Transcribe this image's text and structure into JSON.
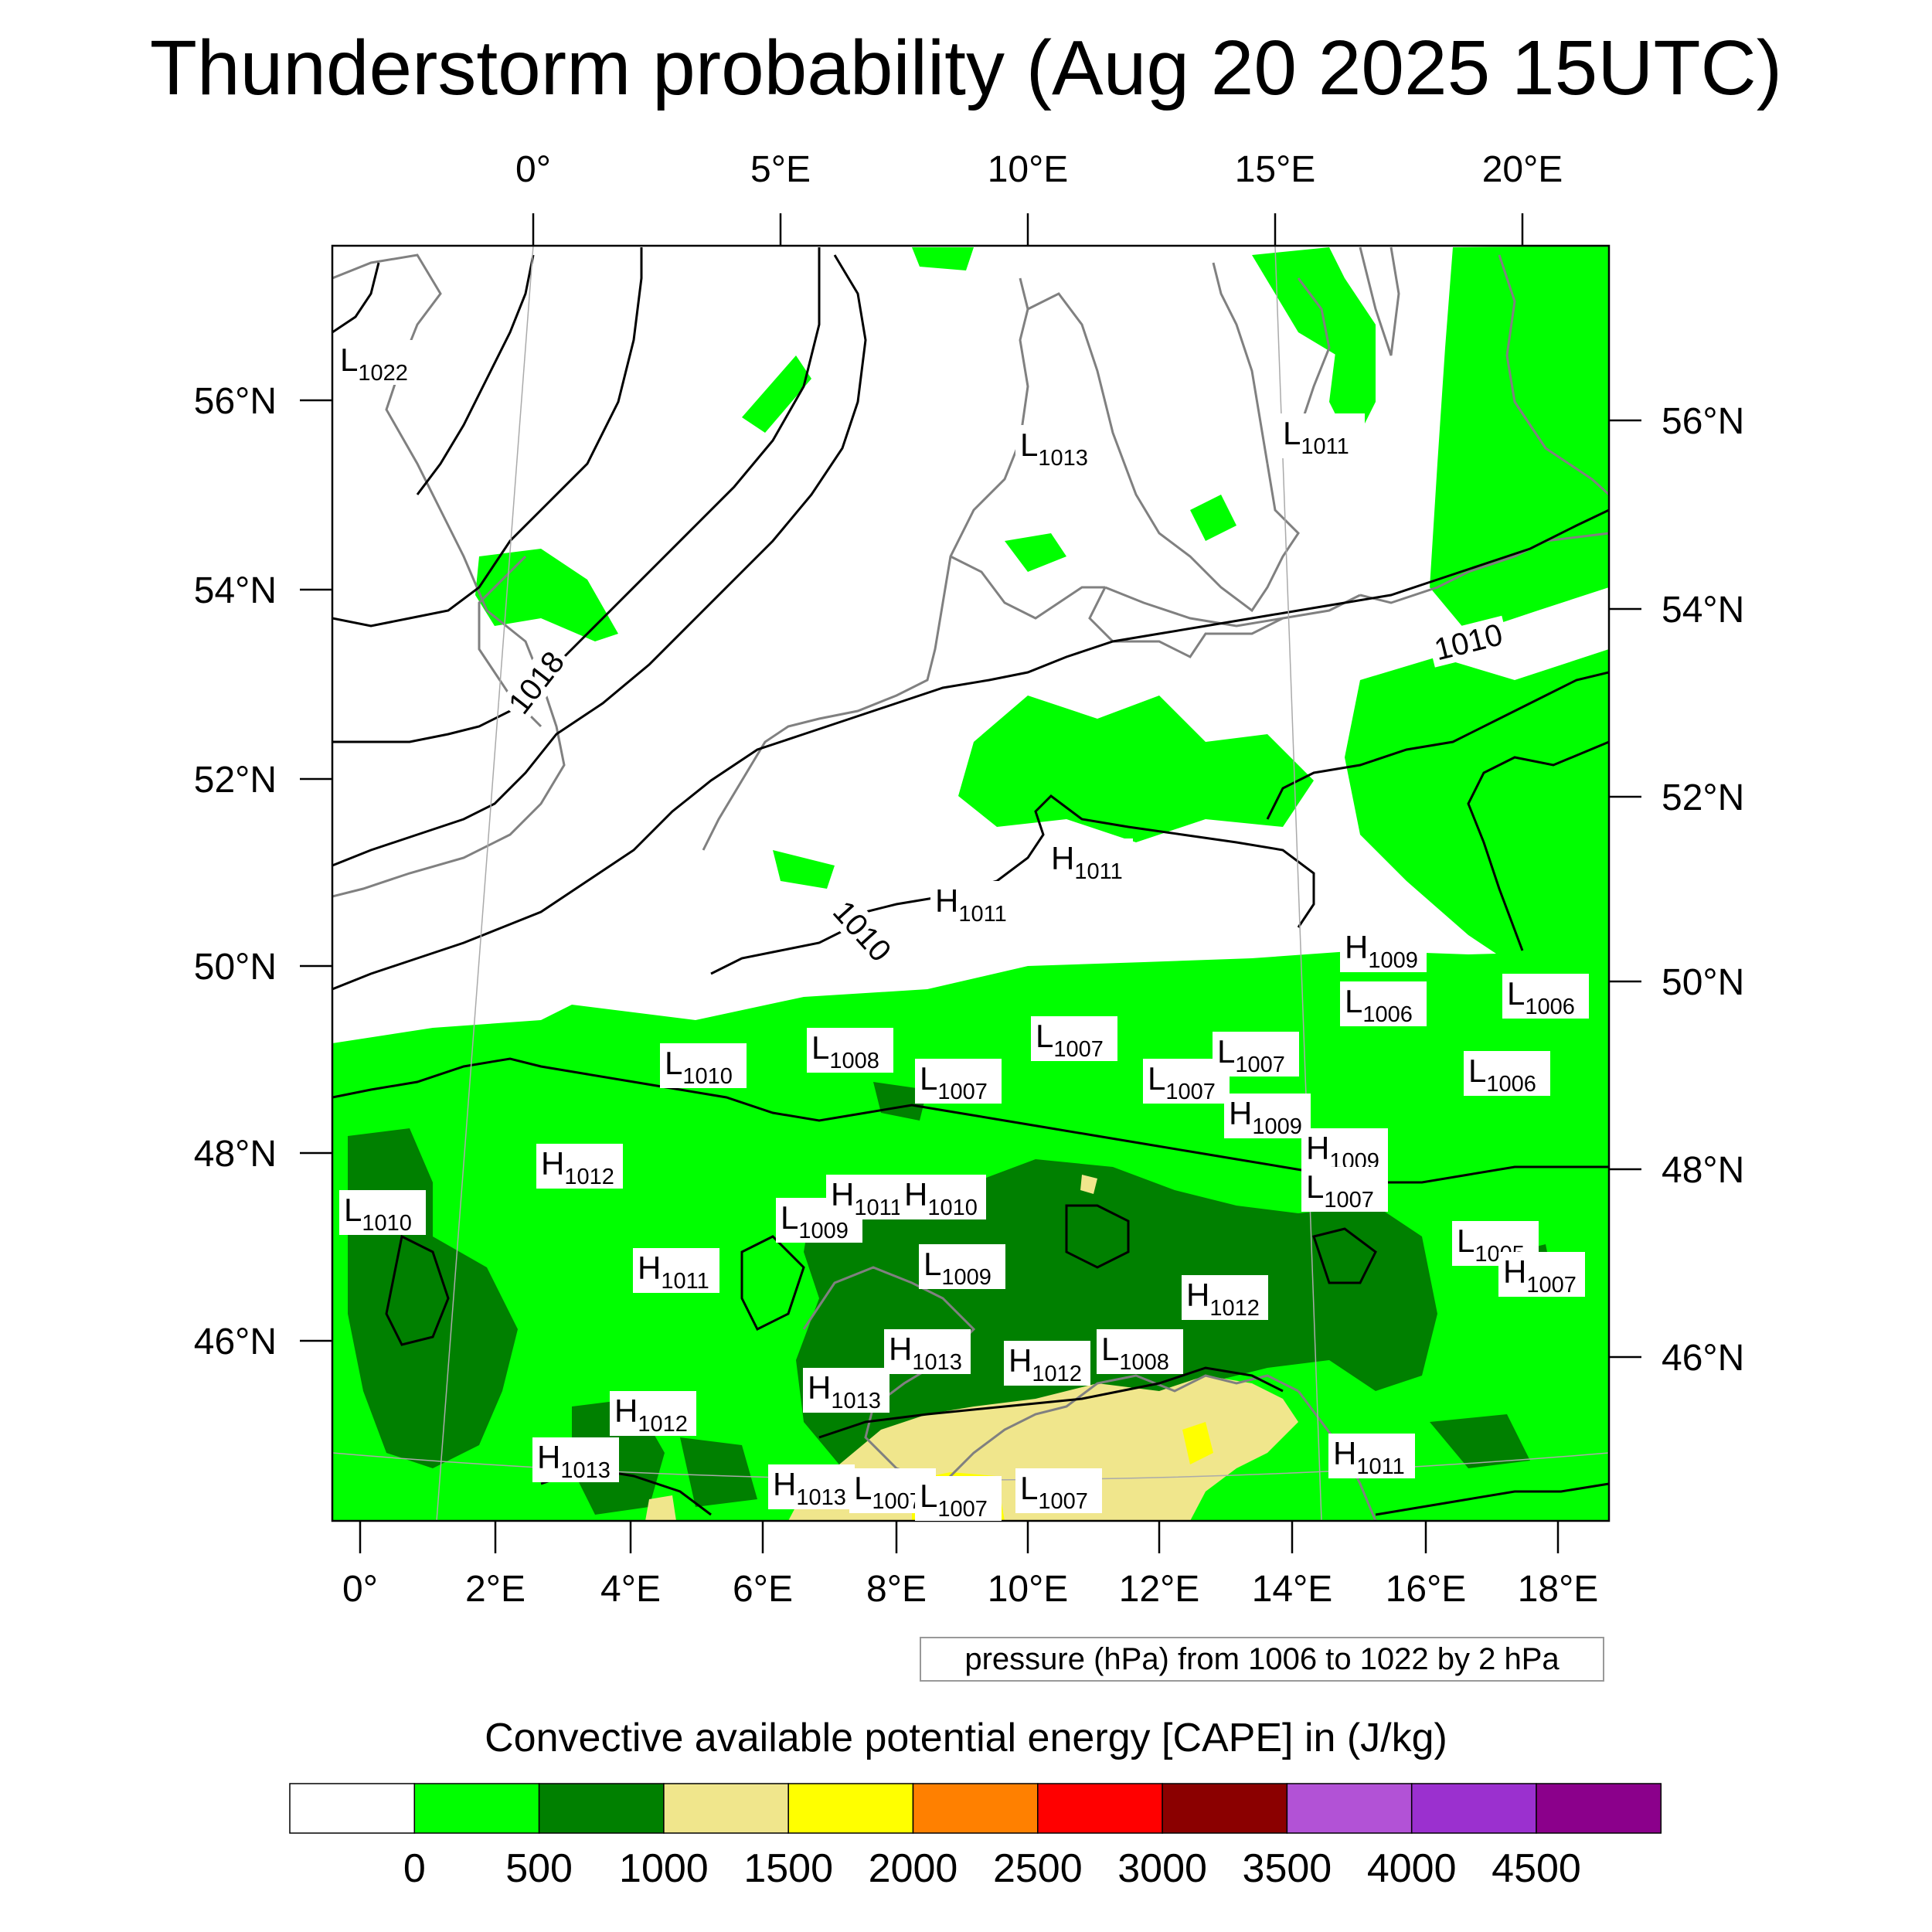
{
  "title": "Thunderstorm probability (Aug 20 2025 15UTC)",
  "top_lon_labels": [
    "0°",
    "5°E",
    "10°E",
    "15°E",
    "20°E"
  ],
  "bottom_lon_labels": [
    "0°",
    "2°E",
    "4°E",
    "6°E",
    "8°E",
    "10°E",
    "12°E",
    "14°E",
    "16°E",
    "18°E"
  ],
  "left_lat_labels": [
    "56°N",
    "54°N",
    "52°N",
    "50°N",
    "48°N",
    "46°N"
  ],
  "right_lat_labels": [
    "56°N",
    "54°N",
    "52°N",
    "50°N",
    "48°N",
    "46°N"
  ],
  "isobar_labels": [
    "1018",
    "1010",
    "1010"
  ],
  "pressure_centers": [
    {
      "type": "L",
      "value": "1022"
    },
    {
      "type": "L",
      "value": "1013"
    },
    {
      "type": "L",
      "value": "1011"
    },
    {
      "type": "H",
      "value": "1011"
    },
    {
      "type": "H",
      "value": "1011"
    },
    {
      "type": "H",
      "value": "1009"
    },
    {
      "type": "L",
      "value": "1006"
    },
    {
      "type": "L",
      "value": "1006"
    },
    {
      "type": "L",
      "value": "1006"
    },
    {
      "type": "L",
      "value": "1010"
    },
    {
      "type": "L",
      "value": "1008"
    },
    {
      "type": "L",
      "value": "1007"
    },
    {
      "type": "L",
      "value": "1007"
    },
    {
      "type": "L",
      "value": "1007"
    },
    {
      "type": "L",
      "value": "1007"
    },
    {
      "type": "H",
      "value": "1009"
    },
    {
      "type": "H",
      "value": "1009"
    },
    {
      "type": "L",
      "value": "1007"
    },
    {
      "type": "H",
      "value": "1012"
    },
    {
      "type": "L",
      "value": "1010"
    },
    {
      "type": "L",
      "value": "1009"
    },
    {
      "type": "H",
      "value": "1011"
    },
    {
      "type": "H",
      "value": "1010"
    },
    {
      "type": "H",
      "value": "1011"
    },
    {
      "type": "L",
      "value": "1009"
    },
    {
      "type": "H",
      "value": "1012"
    },
    {
      "type": "L",
      "value": "1005"
    },
    {
      "type": "H",
      "value": "1007"
    },
    {
      "type": "H",
      "value": "1013"
    },
    {
      "type": "H",
      "value": "1012"
    },
    {
      "type": "L",
      "value": "1008"
    },
    {
      "type": "H",
      "value": "1013"
    },
    {
      "type": "H",
      "value": "1012"
    },
    {
      "type": "H",
      "value": "1013"
    },
    {
      "type": "H",
      "value": "1013"
    },
    {
      "type": "L",
      "value": "1007"
    },
    {
      "type": "L",
      "value": "1007"
    },
    {
      "type": "L",
      "value": "1007"
    },
    {
      "type": "H",
      "value": "1011"
    }
  ],
  "contour_note": "pressure (hPa) from 1006 to 1022 by 2 hPa",
  "colorbar": {
    "title": "Convective available potential energy [CAPE] in (J/kg)",
    "colors": [
      "#ffffff",
      "#00ff00",
      "#008000",
      "#f0e68c",
      "#ffff00",
      "#ff8000",
      "#ff0000",
      "#8b0000",
      "#b252d6",
      "#9b30cf",
      "#8b008b"
    ],
    "ticks": [
      "0",
      "500",
      "1000",
      "1500",
      "2000",
      "2500",
      "3000",
      "3500",
      "4000",
      "4500"
    ]
  },
  "colors": {
    "cape_0_500": "#00ff00",
    "cape_500_1000": "#008000",
    "cape_1000_1500": "#f0e68c",
    "cape_1500_2000": "#ffff00",
    "coastline": "#808080",
    "isobar": "#000000"
  }
}
